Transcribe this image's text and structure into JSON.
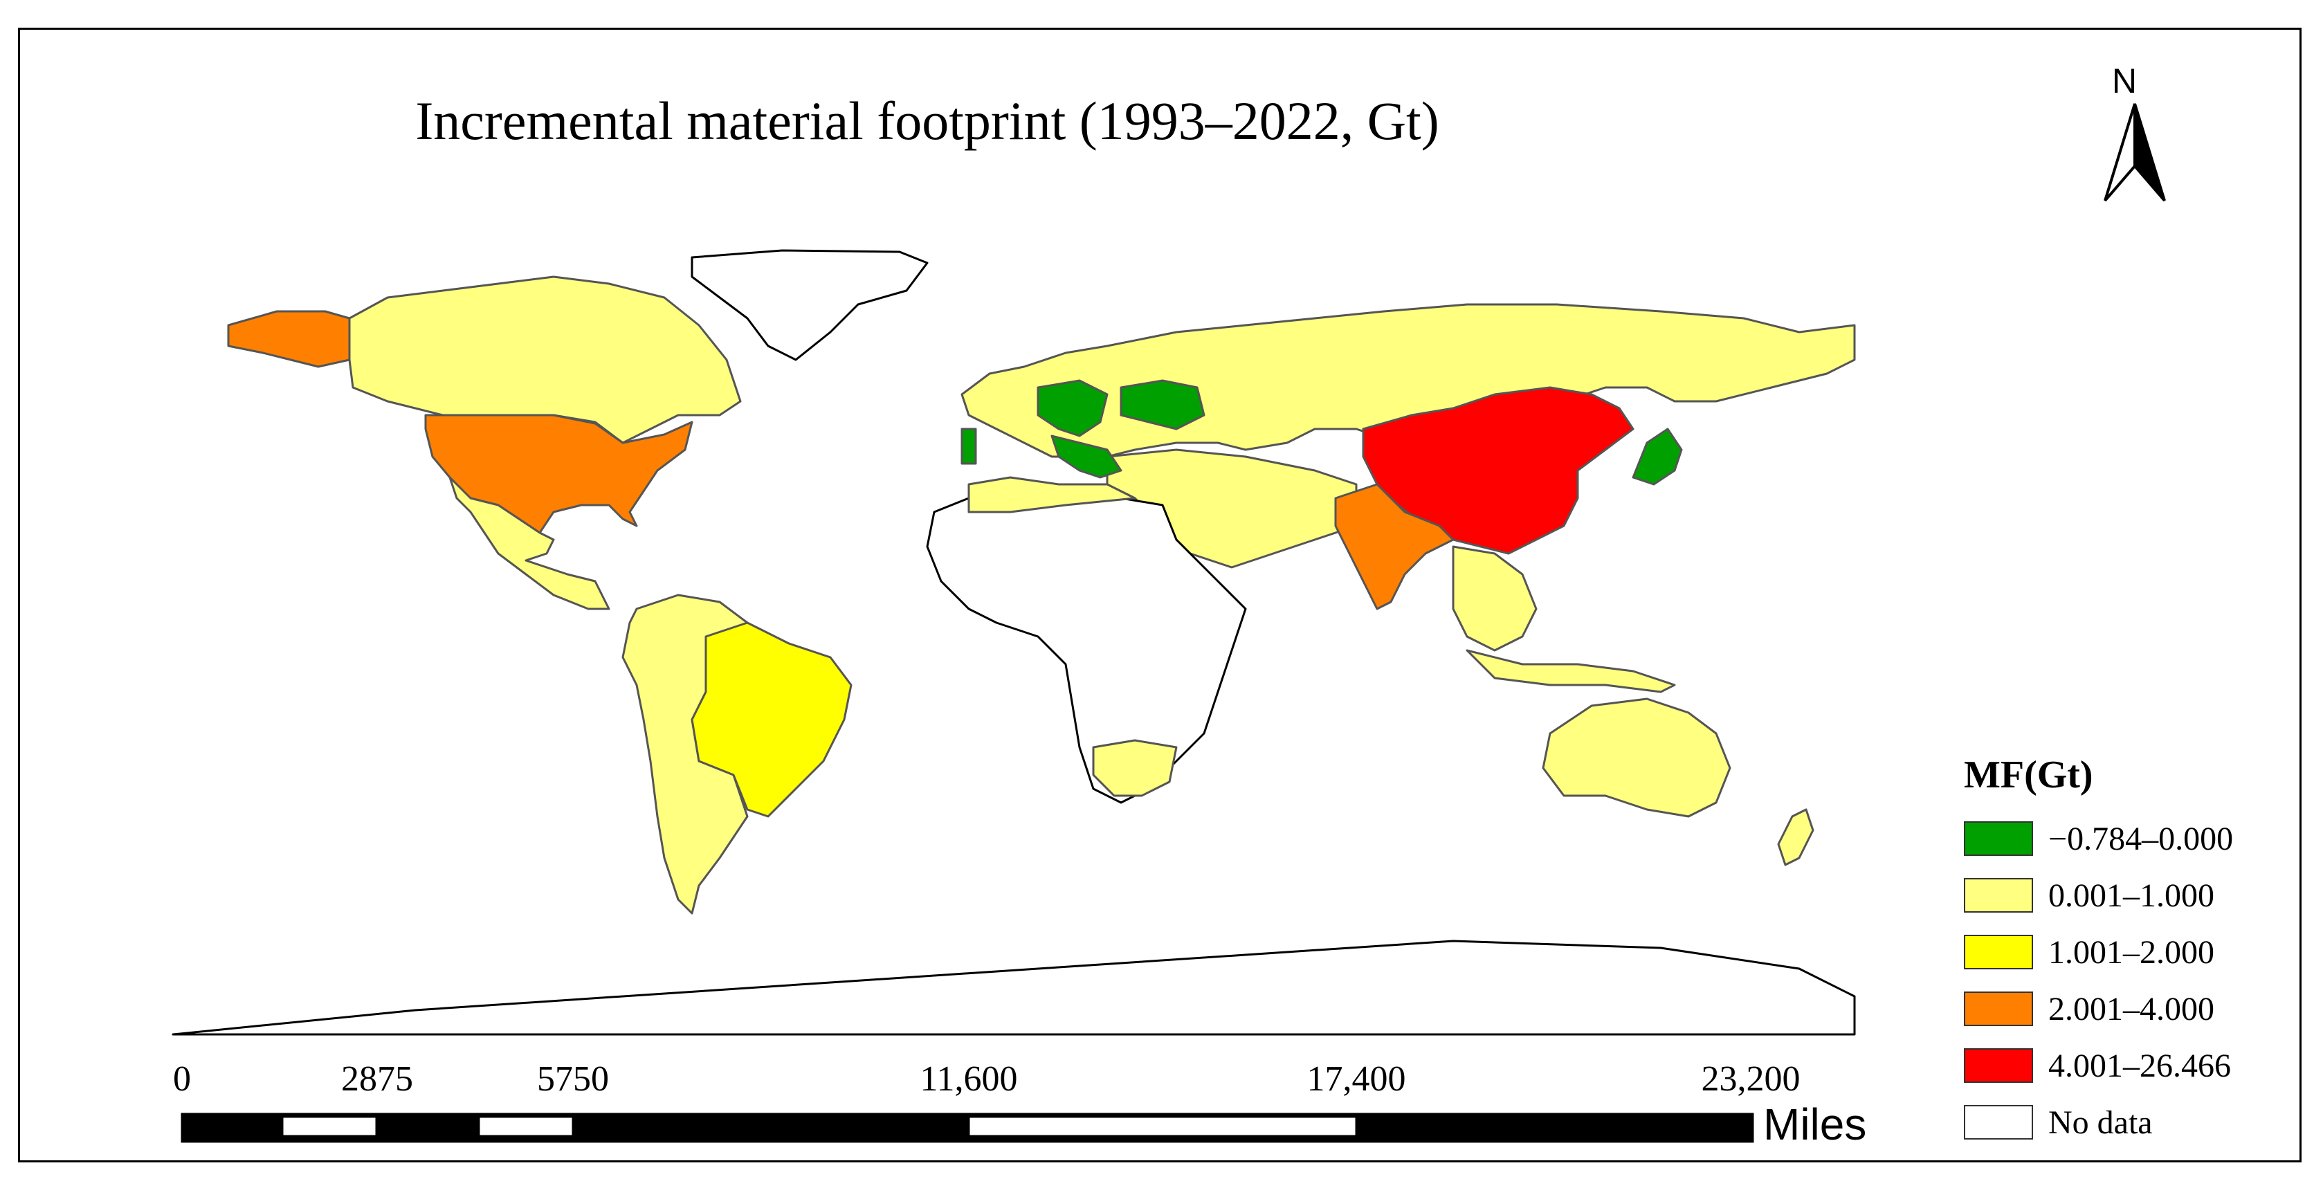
{
  "title": "Incremental material footprint (1993–2022, Gt)",
  "north_arrow": {
    "label": "N",
    "icon": "north-arrow-icon"
  },
  "legend": {
    "title": "MF(Gt)",
    "classes": [
      {
        "label": "−0.784–0.000",
        "color": "#00a000"
      },
      {
        "label": "0.001–1.000",
        "color": "#ffff80"
      },
      {
        "label": "1.001–2.000",
        "color": "#ffff00"
      },
      {
        "label": "2.001–4.000",
        "color": "#ff8000"
      },
      {
        "label": "4.001–26.466",
        "color": "#ff0000"
      },
      {
        "label": "No data",
        "color": "#ffffff"
      }
    ]
  },
  "scale_bar": {
    "labels": [
      "0",
      "2875",
      "5750",
      "11,600",
      "17,400",
      "23,200"
    ],
    "unit": "Miles"
  },
  "map_regions": [
    {
      "name": "China",
      "class": "4.001–26.466"
    },
    {
      "name": "United States",
      "class": "2.001–4.000"
    },
    {
      "name": "Alaska",
      "class": "2.001–4.000"
    },
    {
      "name": "India",
      "class": "2.001–4.000"
    },
    {
      "name": "Brazil",
      "class": "1.001–2.000"
    },
    {
      "name": "Japan",
      "class": "−0.784–0.000"
    },
    {
      "name": "Central Europe",
      "class": "−0.784–0.000"
    },
    {
      "name": "Ukraine",
      "class": "−0.784–0.000"
    },
    {
      "name": "Canada",
      "class": "0.001–1.000"
    },
    {
      "name": "Russia",
      "class": "0.001–1.000"
    },
    {
      "name": "Australia",
      "class": "0.001–1.000"
    },
    {
      "name": "Mexico",
      "class": "0.001–1.000"
    },
    {
      "name": "Greenland",
      "class": "No data"
    },
    {
      "name": "Africa",
      "class": "No data"
    },
    {
      "name": "Antarctica",
      "class": "No data"
    }
  ]
}
